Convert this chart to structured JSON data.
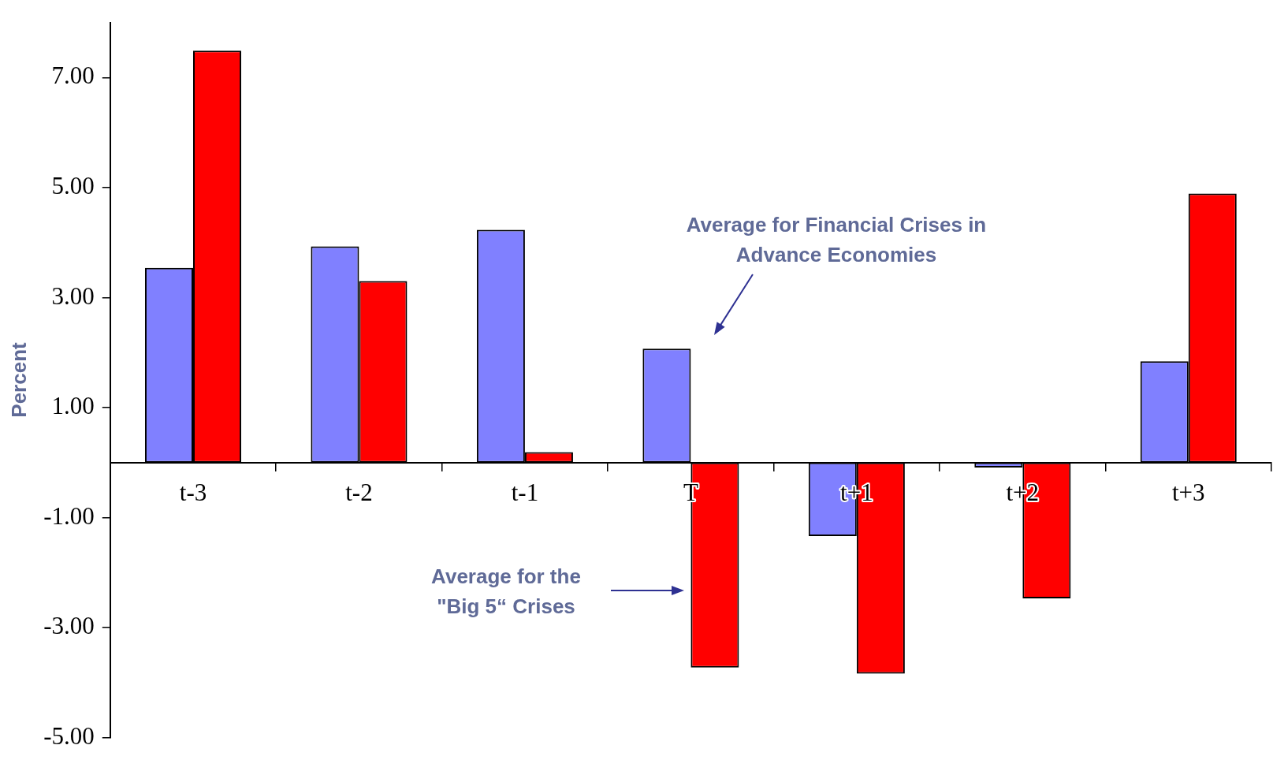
{
  "chart_data": {
    "type": "bar",
    "ylabel": "Percent",
    "categories": [
      "t-3",
      "t-2",
      "t-1",
      "T",
      "t+1",
      "t+2",
      "t+3"
    ],
    "series": [
      {
        "color": "#8080ff",
        "values": [
          3.54,
          3.93,
          4.23,
          2.07,
          -1.34,
          -0.09,
          1.84
        ]
      },
      {
        "color": "#ff0000",
        "values": [
          7.49,
          3.3,
          0.19,
          -3.73,
          -3.84,
          -2.47,
          4.89
        ]
      }
    ],
    "ylim": [
      -5,
      8
    ],
    "yticks": [
      {
        "value": 7,
        "label": "7.00"
      },
      {
        "value": 5,
        "label": "5.00"
      },
      {
        "value": 3,
        "label": "3.00"
      },
      {
        "value": 1,
        "label": "1.00"
      },
      {
        "value": -1,
        "label": "-1.00"
      },
      {
        "value": -3,
        "label": "-3.00"
      },
      {
        "value": -5,
        "label": "-5.00"
      }
    ],
    "annotations": [
      "Average for Financial Crises in Advance Economies",
      "Average for the \"Big 5“ Crises"
    ]
  }
}
